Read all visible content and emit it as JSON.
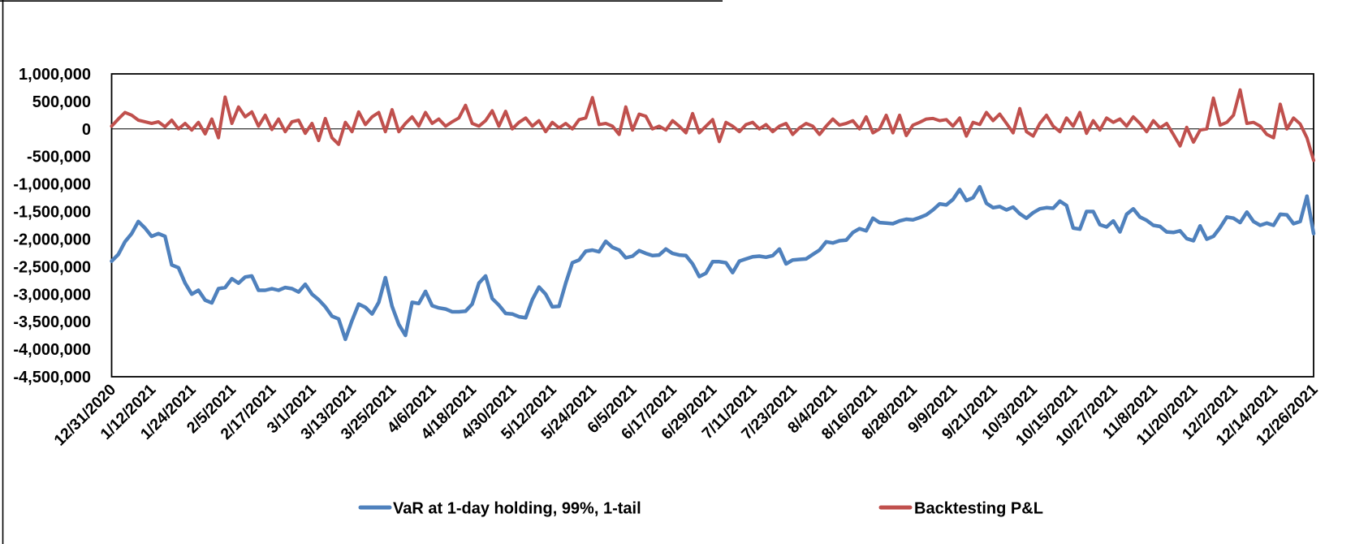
{
  "page": {
    "background": "#ffffff"
  },
  "chart_data": {
    "type": "line",
    "title": "",
    "xlabel": "",
    "ylabel": "",
    "grid": "zero-line-only",
    "legend_position": "bottom",
    "x_axis": {
      "start_label": "12/31/2020",
      "tick_interval_days": 12,
      "total_days": 360,
      "tick_labels": [
        "12/31/2020",
        "1/12/2021",
        "1/24/2021",
        "2/5/2021",
        "2/17/2021",
        "3/1/2021",
        "3/13/2021",
        "3/25/2021",
        "4/6/2021",
        "4/18/2021",
        "4/30/2021",
        "5/12/2021",
        "5/24/2021",
        "6/5/2021",
        "6/17/2021",
        "6/29/2021",
        "7/11/2021",
        "7/23/2021",
        "8/4/2021",
        "8/16/2021",
        "8/28/2021",
        "9/9/2021",
        "9/21/2021",
        "10/3/2021",
        "10/15/2021",
        "10/27/2021",
        "11/8/2021",
        "11/20/2021",
        "12/2/2021",
        "12/14/2021",
        "12/26/2021"
      ]
    },
    "y_axis": {
      "max": 1000000,
      "min": -4500000,
      "tick_step": 500000,
      "tick_labels": [
        "1,000,000",
        "500,000",
        "0",
        "-500,000",
        "-1,000,000",
        "-1,500,000",
        "-2,000,000",
        "-2,500,000",
        "-3,000,000",
        "-3,500,000",
        "-4,000,000",
        "-4,500,000"
      ],
      "tick_values": [
        1000000,
        500000,
        0,
        -500000,
        -1000000,
        -1500000,
        -2000000,
        -2500000,
        -3000000,
        -3500000,
        -4000000,
        -4500000
      ]
    },
    "series": [
      {
        "name": "VaR at 1-day holding, 99%, 1-tail",
        "color": "#4F81BD",
        "day_step": 2,
        "values": [
          -2400000,
          -2280000,
          -2050000,
          -1900000,
          -1680000,
          -1800000,
          -1950000,
          -1900000,
          -1950000,
          -2470000,
          -2520000,
          -2800000,
          -3000000,
          -2930000,
          -3110000,
          -3160000,
          -2900000,
          -2880000,
          -2720000,
          -2800000,
          -2690000,
          -2670000,
          -2930000,
          -2930000,
          -2900000,
          -2930000,
          -2880000,
          -2900000,
          -2960000,
          -2820000,
          -3000000,
          -3100000,
          -3230000,
          -3400000,
          -3450000,
          -3820000,
          -3480000,
          -3180000,
          -3240000,
          -3360000,
          -3150000,
          -2700000,
          -3220000,
          -3550000,
          -3750000,
          -3150000,
          -3170000,
          -2950000,
          -3210000,
          -3250000,
          -3270000,
          -3320000,
          -3320000,
          -3310000,
          -3180000,
          -2800000,
          -2670000,
          -3080000,
          -3200000,
          -3350000,
          -3360000,
          -3410000,
          -3430000,
          -3100000,
          -2870000,
          -3000000,
          -3230000,
          -3220000,
          -2800000,
          -2430000,
          -2380000,
          -2220000,
          -2200000,
          -2230000,
          -2040000,
          -2150000,
          -2200000,
          -2340000,
          -2310000,
          -2210000,
          -2260000,
          -2300000,
          -2290000,
          -2180000,
          -2260000,
          -2290000,
          -2300000,
          -2450000,
          -2680000,
          -2620000,
          -2410000,
          -2410000,
          -2430000,
          -2610000,
          -2400000,
          -2360000,
          -2320000,
          -2310000,
          -2330000,
          -2300000,
          -2180000,
          -2450000,
          -2380000,
          -2370000,
          -2360000,
          -2280000,
          -2200000,
          -2050000,
          -2070000,
          -2030000,
          -2020000,
          -1880000,
          -1810000,
          -1850000,
          -1620000,
          -1700000,
          -1710000,
          -1720000,
          -1670000,
          -1640000,
          -1650000,
          -1610000,
          -1560000,
          -1470000,
          -1360000,
          -1380000,
          -1280000,
          -1100000,
          -1300000,
          -1250000,
          -1050000,
          -1350000,
          -1430000,
          -1410000,
          -1470000,
          -1420000,
          -1540000,
          -1620000,
          -1520000,
          -1450000,
          -1430000,
          -1440000,
          -1310000,
          -1390000,
          -1800000,
          -1820000,
          -1500000,
          -1500000,
          -1740000,
          -1780000,
          -1670000,
          -1870000,
          -1550000,
          -1450000,
          -1600000,
          -1660000,
          -1750000,
          -1770000,
          -1870000,
          -1880000,
          -1850000,
          -1990000,
          -2030000,
          -1760000,
          -2000000,
          -1950000,
          -1790000,
          -1600000,
          -1620000,
          -1700000,
          -1510000,
          -1680000,
          -1750000,
          -1710000,
          -1750000,
          -1550000,
          -1560000,
          -1720000,
          -1680000,
          -1220000,
          -1900000
        ]
      },
      {
        "name": "Backtesting P&L",
        "color": "#C0504D",
        "day_step": 2,
        "values": [
          50000,
          180000,
          300000,
          250000,
          160000,
          130000,
          100000,
          130000,
          40000,
          160000,
          0,
          100000,
          -20000,
          120000,
          -90000,
          180000,
          -160000,
          580000,
          100000,
          400000,
          220000,
          310000,
          50000,
          250000,
          -10000,
          180000,
          -50000,
          130000,
          160000,
          -80000,
          100000,
          -210000,
          190000,
          -160000,
          -280000,
          120000,
          -50000,
          310000,
          80000,
          220000,
          300000,
          -50000,
          350000,
          -50000,
          100000,
          220000,
          50000,
          300000,
          100000,
          180000,
          50000,
          130000,
          200000,
          430000,
          100000,
          50000,
          150000,
          330000,
          50000,
          320000,
          0,
          120000,
          200000,
          50000,
          150000,
          -50000,
          120000,
          20000,
          100000,
          0,
          170000,
          200000,
          570000,
          80000,
          100000,
          50000,
          -100000,
          400000,
          -20000,
          270000,
          230000,
          0,
          50000,
          -20000,
          150000,
          50000,
          -70000,
          280000,
          -70000,
          50000,
          170000,
          -230000,
          120000,
          50000,
          -50000,
          80000,
          120000,
          0,
          80000,
          -50000,
          50000,
          100000,
          -100000,
          20000,
          100000,
          50000,
          -100000,
          50000,
          180000,
          70000,
          100000,
          150000,
          0,
          220000,
          -70000,
          0,
          250000,
          -70000,
          250000,
          -120000,
          70000,
          120000,
          180000,
          190000,
          150000,
          170000,
          50000,
          200000,
          -130000,
          120000,
          80000,
          300000,
          150000,
          270000,
          100000,
          -70000,
          370000,
          -50000,
          -130000,
          100000,
          250000,
          50000,
          -50000,
          200000,
          50000,
          300000,
          -80000,
          150000,
          -20000,
          200000,
          120000,
          180000,
          50000,
          220000,
          100000,
          -50000,
          150000,
          20000,
          100000,
          -100000,
          -310000,
          30000,
          -240000,
          -20000,
          0,
          560000,
          70000,
          120000,
          250000,
          710000,
          100000,
          120000,
          50000,
          -100000,
          -160000,
          450000,
          0,
          200000,
          90000,
          -160000,
          -570000
        ]
      }
    ]
  }
}
